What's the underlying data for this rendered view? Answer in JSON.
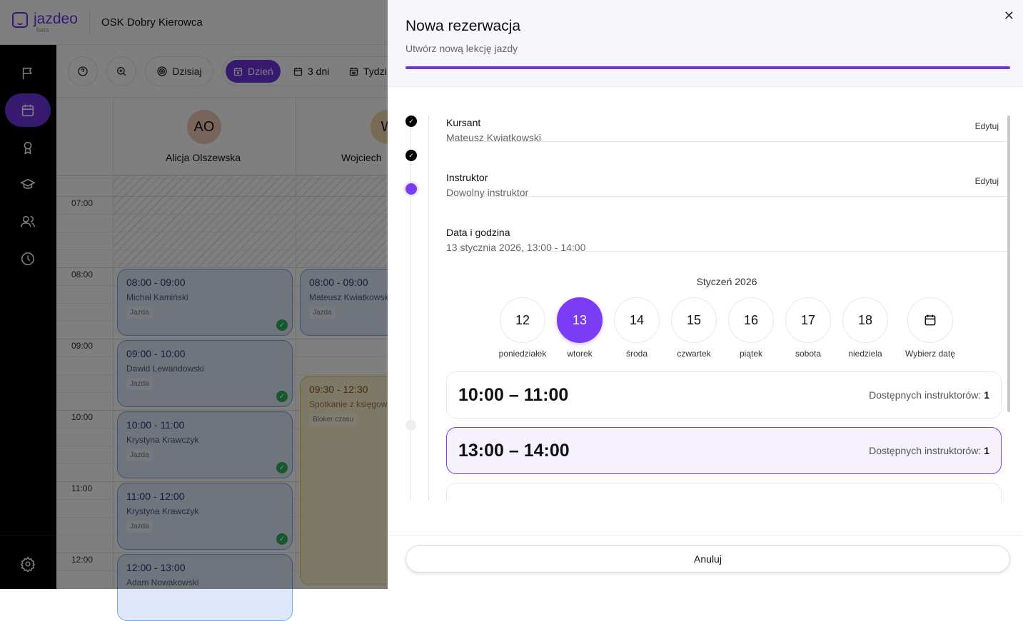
{
  "app": {
    "logo": "jazdeo",
    "logo_badge": "beta",
    "school": "OSK Dobry Kierowca"
  },
  "sidebar": {
    "items": [
      {
        "icon": "flag-icon"
      },
      {
        "icon": "calendar-icon",
        "active": true
      },
      {
        "icon": "award-icon"
      },
      {
        "icon": "graduation-cap-icon"
      },
      {
        "icon": "users-icon"
      },
      {
        "icon": "clock-icon"
      },
      {
        "icon": "gear-icon"
      }
    ]
  },
  "toolbar": {
    "today": "Dzisiaj",
    "views": [
      "Dzień",
      "3 dni",
      "Tydzi"
    ],
    "active_view": "Dzień"
  },
  "calendar": {
    "instructors": [
      {
        "initials": "AO",
        "name": "Alicja Olszewska",
        "color": "#f2c9b8"
      },
      {
        "initials": "W",
        "name": "Wojciech",
        "color": "#f0d6a8"
      }
    ],
    "hours": [
      "07:00",
      "08:00",
      "09:00",
      "10:00",
      "11:00",
      "12:00"
    ],
    "events": [
      {
        "time": "08:00 - 09:00",
        "who": "Michał Kamiński",
        "tag": "Jazda"
      },
      {
        "time": "09:00 - 10:00",
        "who": "Dawid Lewandowski",
        "tag": "Jazda"
      },
      {
        "time": "10:00 - 11:00",
        "who": "Krystyna Krawczyk",
        "tag": "Jazda"
      },
      {
        "time": "11:00 - 12:00",
        "who": "Krystyna Krawczyk",
        "tag": "Jazda"
      },
      {
        "time": "12:00 - 13:00",
        "who": "Adam Nowakowski",
        "tag": "Jazda"
      },
      {
        "time": "08:00 - 09:00",
        "who": "Mateusz Kwiatkowski",
        "tag": "Jazda"
      },
      {
        "time": "09:30 - 12:30",
        "who": "Spotkanie z księgow",
        "tag": "Bloker czasu"
      }
    ]
  },
  "drawer": {
    "title": "Nowa rezerwacja",
    "subtitle": "Utwórz nową lekcję jazdy",
    "progress_percent": 100,
    "steps": [
      {
        "title": "Kursant",
        "value": "Mateusz Kwiatkowski",
        "edit": "Edytuj"
      },
      {
        "title": "Instruktor",
        "value": "Dowolny instruktor",
        "edit": "Edytuj"
      },
      {
        "title": "Data i godzina",
        "value": "13 stycznia 2026, 13:00 - 14:00"
      }
    ],
    "month": "Styczeń 2026",
    "days": [
      {
        "num": "12",
        "name": "poniedziałek"
      },
      {
        "num": "13",
        "name": "wtorek",
        "selected": true
      },
      {
        "num": "14",
        "name": "środa"
      },
      {
        "num": "15",
        "name": "czwartek"
      },
      {
        "num": "16",
        "name": "piątek"
      },
      {
        "num": "17",
        "name": "sobota"
      },
      {
        "num": "18",
        "name": "niedziela"
      }
    ],
    "pick_date": "Wybierz datę",
    "slots": [
      {
        "time": "10:00 – 11:00",
        "label": "Dostępnych instruktorów:",
        "count": "1"
      },
      {
        "time": "13:00 – 14:00",
        "label": "Dostępnych instruktorów:",
        "count": "1",
        "selected": true
      }
    ],
    "cancel": "Anuluj"
  },
  "colors": {
    "accent": "#6a35e0",
    "selected": "#7a3cf5"
  }
}
